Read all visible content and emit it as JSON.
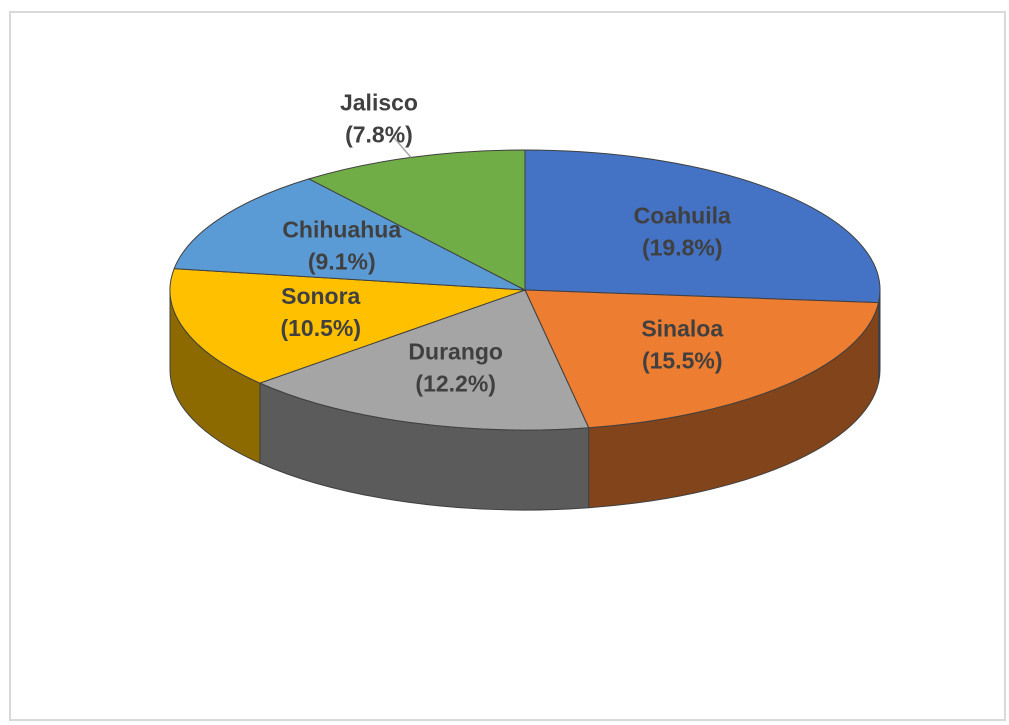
{
  "chart_data": {
    "type": "pie",
    "categories": [
      "Coahuila",
      "Sinaloa",
      "Durango",
      "Sonora",
      "Chihuahua",
      "Jalisco"
    ],
    "values": [
      19.8,
      15.5,
      12.2,
      10.5,
      9.1,
      7.8
    ],
    "value_labels": [
      "(19.8%)",
      "(15.5%)",
      "(12.2%)",
      "(10.5%)",
      "(9.1%)",
      "(7.8%)"
    ],
    "colors": [
      "#4472c4",
      "#ed7d31",
      "#a5a5a5",
      "#ffc000",
      "#5b9bd5",
      "#70ad47"
    ]
  }
}
